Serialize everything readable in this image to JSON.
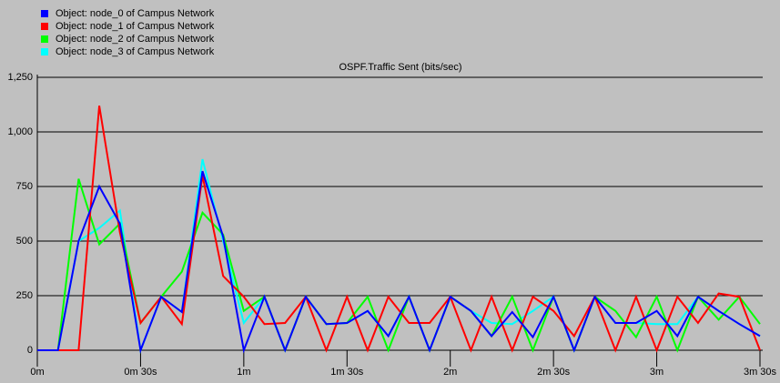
{
  "chart_data": {
    "type": "line",
    "title": "OSPF.Traffic Sent (bits/sec)",
    "x": [
      0,
      6,
      12,
      18,
      24,
      30,
      36,
      42,
      48,
      54,
      60,
      66,
      72,
      78,
      84,
      90,
      96,
      102,
      108,
      114,
      120,
      126,
      132,
      138,
      144,
      150,
      156,
      162,
      168,
      174,
      180,
      186,
      192,
      198,
      204,
      210
    ],
    "series": [
      {
        "name": "Object: node_0 of Campus Network",
        "color": "#0000ff",
        "values": [
          0,
          0,
          500,
          750,
          580,
          0,
          245,
          175,
          820,
          520,
          0,
          245,
          0,
          245,
          120,
          125,
          180,
          65,
          245,
          0,
          245,
          180,
          65,
          175,
          60,
          245,
          0,
          245,
          125,
          125,
          180,
          65,
          245,
          180,
          120,
          65
        ]
      },
      {
        "name": "Object: node_1 of Campus Network",
        "color": "#ff0000",
        "values": [
          0,
          0,
          0,
          1120,
          540,
          125,
          245,
          120,
          800,
          340,
          245,
          120,
          125,
          245,
          0,
          245,
          0,
          245,
          125,
          125,
          245,
          0,
          245,
          0,
          245,
          180,
          65,
          245,
          0,
          245,
          0,
          245,
          125,
          260,
          245,
          0
        ]
      },
      {
        "name": "Object: node_2 of Campus Network",
        "color": "#00ff00",
        "values": [
          0,
          0,
          785,
          485,
          580,
          125,
          245,
          360,
          630,
          530,
          180,
          245,
          0,
          245,
          120,
          125,
          245,
          0,
          245,
          0,
          245,
          180,
          65,
          245,
          0,
          245,
          0,
          245,
          180,
          60,
          245,
          0,
          245,
          140,
          245,
          120
        ]
      },
      {
        "name": "Object: node_3 of Campus Network",
        "color": "#00ffff",
        "values": [
          0,
          0,
          500,
          560,
          640,
          0,
          245,
          175,
          875,
          500,
          125,
          245,
          0,
          245,
          120,
          125,
          180,
          65,
          245,
          0,
          245,
          180,
          125,
          120,
          180,
          245,
          0,
          245,
          125,
          125,
          120,
          120,
          245,
          180,
          120,
          65
        ]
      }
    ],
    "xlim": [
      0,
      210
    ],
    "xticks": [
      {
        "value": 0,
        "label": "0m"
      },
      {
        "value": 30,
        "label": "0m 30s"
      },
      {
        "value": 60,
        "label": "1m"
      },
      {
        "value": 90,
        "label": "1m 30s"
      },
      {
        "value": 120,
        "label": "2m"
      },
      {
        "value": 150,
        "label": "2m 30s"
      },
      {
        "value": 180,
        "label": "3m"
      },
      {
        "value": 210,
        "label": "3m 30s"
      }
    ],
    "ylim": [
      0,
      1250
    ],
    "yticks": [
      0,
      250,
      500,
      750,
      {
        "value": 1000,
        "label": "1,000"
      },
      {
        "value": 1250,
        "label": "1,250"
      }
    ],
    "grid": true
  }
}
